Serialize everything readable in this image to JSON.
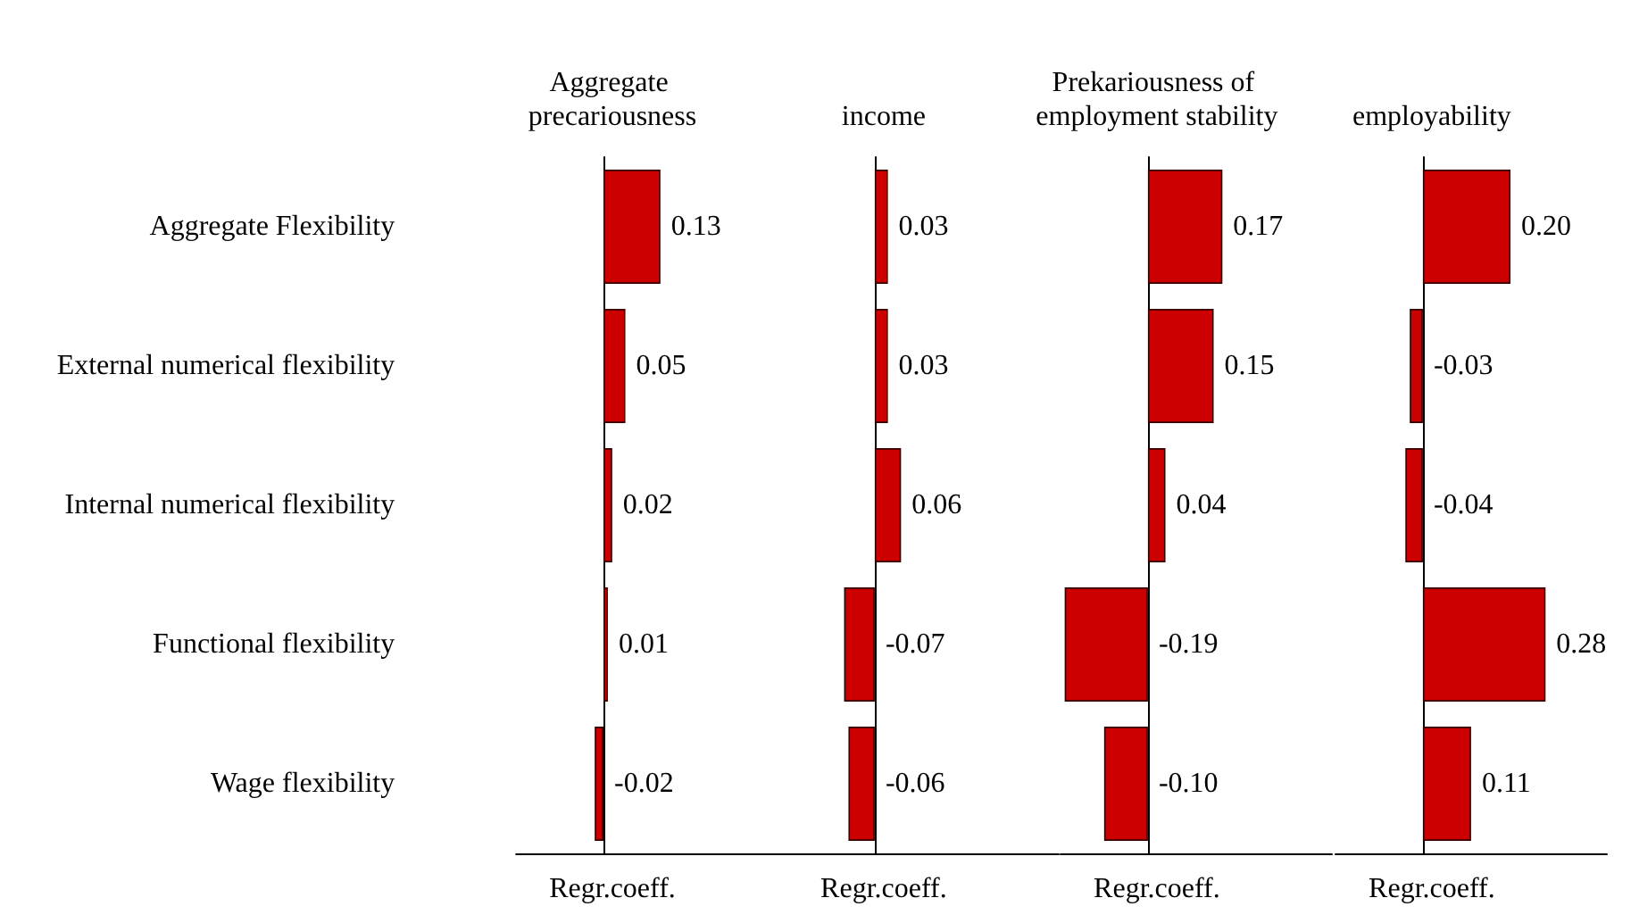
{
  "chart_data": [
    {
      "type": "bar",
      "orientation": "horizontal",
      "title": "Aggregate precariousness",
      "xlabel": "Regr.coeff.",
      "categories": [
        "Aggregate Flexibility",
        "External numerical flexibility",
        "Internal numerical flexibility",
        "Functional flexibility",
        "Wage flexibility"
      ],
      "values": [
        0.13,
        0.05,
        0.02,
        0.01,
        -0.02
      ],
      "value_labels": [
        "0.13",
        "0.05",
        "0.02",
        "0.01",
        "-0.02"
      ],
      "color": "#cc0000",
      "tick_labels": "y"
    },
    {
      "type": "bar",
      "orientation": "horizontal",
      "title": "income",
      "xlabel": "Regr.coeff.",
      "categories": [
        null,
        null,
        null,
        null,
        null
      ],
      "values": [
        0.03,
        0.03,
        0.06,
        -0.07,
        -0.06
      ],
      "value_labels": [
        "0.03",
        "0.03",
        "0.06",
        "-0.07",
        "-0.06"
      ],
      "color": "#cc0000",
      "tick_labels": false
    },
    {
      "type": "bar",
      "orientation": "horizontal",
      "title": "Prekariousness of employment stability",
      "xlabel": "Regr.coeff.",
      "categories": [
        null,
        null,
        null,
        null,
        null
      ],
      "values": [
        0.17,
        0.15,
        0.04,
        -0.19,
        -0.1
      ],
      "value_labels": [
        "0.17",
        "0.15",
        "0.04",
        "-0.19",
        "-0.10"
      ],
      "color": "#cc0000",
      "tick_labels": false
    },
    {
      "type": "bar",
      "orientation": "horizontal",
      "title": "employability",
      "xlabel": "Regr.coeff.",
      "categories": [
        null,
        null,
        null,
        null,
        null
      ],
      "values": [
        0.2,
        -0.03,
        -0.04,
        0.28,
        0.11
      ],
      "value_labels": [
        "0.20",
        "-0.03",
        "-0.04",
        "0.28",
        "0.11"
      ],
      "color": "#cc0000",
      "tick_labels": false
    }
  ]
}
